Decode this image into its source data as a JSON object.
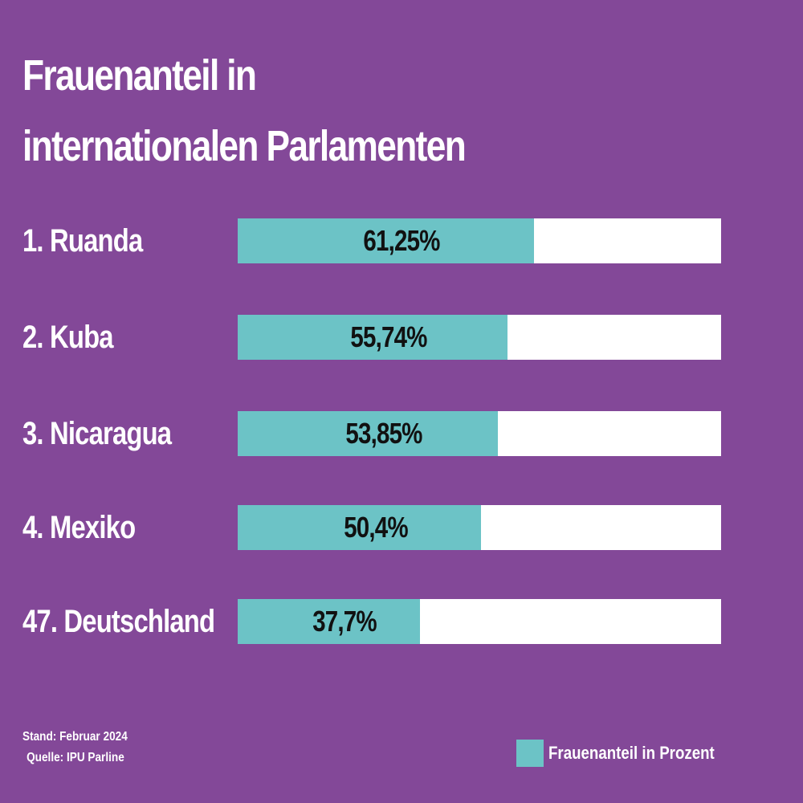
{
  "chart_data": {
    "type": "bar",
    "orientation": "horizontal",
    "title": "Frauenanteil in internationalen Parlamenten",
    "title_lines": [
      "Frauenanteil in",
      "internationalen Parlamenten"
    ],
    "categories": [
      "1. Ruanda",
      "2. Kuba",
      "3. Nicaragua",
      "4. Mexiko",
      "47. Deutschland"
    ],
    "values": [
      61.25,
      55.74,
      53.85,
      50.4,
      37.7
    ],
    "value_labels": [
      "61,25%",
      "55,74%",
      "53,85%",
      "50,4%",
      "37,7%"
    ],
    "xlim": [
      0,
      100
    ],
    "unit": "%",
    "legend": {
      "label": "Frauenanteil in Prozent",
      "placement": "bottom-right"
    },
    "grid": false
  },
  "footer": {
    "stand": "Stand: Februar 2024",
    "source": "Quelle: IPU Parline"
  },
  "colors": {
    "background": "#834898",
    "bar_fill": "#6cc3c6",
    "bar_track": "#ffffff",
    "text": "#ffffff",
    "value_text": "#111111"
  }
}
